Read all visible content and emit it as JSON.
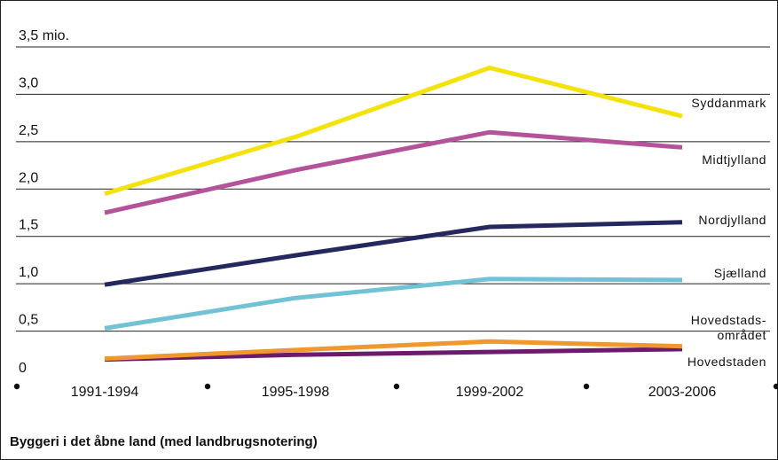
{
  "chart_data": {
    "type": "line",
    "caption": "Byggeri i det åbne land (med landbrugsnotering)",
    "categories": [
      "1991-1994",
      "1995-1998",
      "1999-2002",
      "2003-2006"
    ],
    "ytick_labels": [
      "0",
      "0,5",
      "1,0",
      "1,5",
      "2,0",
      "2,5",
      "3,0",
      "3,5 mio."
    ],
    "ylim": [
      0,
      3.5
    ],
    "grid": true,
    "series": [
      {
        "name": "Syddanmark",
        "color": "#f3e20c",
        "values": [
          1.95,
          2.55,
          3.28,
          2.77
        ]
      },
      {
        "name": "Midtjylland",
        "color": "#b4539a",
        "values": [
          1.75,
          2.2,
          2.6,
          2.44
        ]
      },
      {
        "name": "Nordjylland",
        "color": "#24285e",
        "values": [
          0.99,
          1.3,
          1.6,
          1.65
        ]
      },
      {
        "name": "Sjælland",
        "color": "#72c2d6",
        "values": [
          0.53,
          0.85,
          1.05,
          1.04
        ]
      },
      {
        "name": "Hovedstads-\nområdet",
        "color": "#f0972e",
        "values": [
          0.21,
          0.3,
          0.39,
          0.34
        ]
      },
      {
        "name": "Hovedstaden",
        "color": "#6b1a6e",
        "values": [
          0.2,
          0.25,
          0.28,
          0.31
        ]
      }
    ]
  }
}
